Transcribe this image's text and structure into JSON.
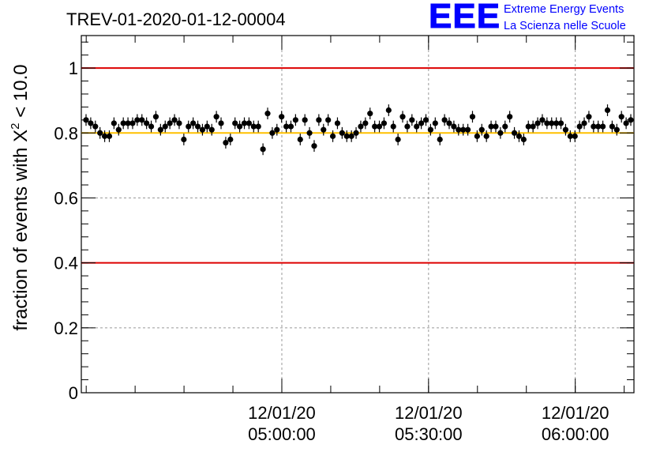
{
  "title": "TREV-01-2020-01-12-00004",
  "logo": {
    "letters": "EEE",
    "line1": "Extreme Energy Events",
    "line2": "La Scienza nelle Scuole",
    "color": "#0000ff"
  },
  "chart_data": {
    "type": "scatter",
    "title": "TREV-01-2020-01-12-00004",
    "ylabel_prefix": "fraction of events with ",
    "ylabel_symbol": "X",
    "ylabel_sup": "2",
    "ylabel_suffix": " < 10.0",
    "xlabel": "",
    "ylim": [
      0,
      1.1
    ],
    "yticks": [
      "0",
      "0.2",
      "0.4",
      "0.6",
      "0.8",
      "1"
    ],
    "ytick_values": [
      0,
      0.2,
      0.4,
      0.6,
      0.8,
      1.0
    ],
    "xlim_minutes": [
      -41,
      72
    ],
    "xticks": [
      {
        "minute": 0,
        "line1": "12/01/20",
        "line2": "05:00:00"
      },
      {
        "minute": 30,
        "line1": "12/01/20",
        "line2": "05:30:00"
      },
      {
        "minute": 60,
        "line1": "12/01/20",
        "line2": "06:00:00"
      }
    ],
    "grid": true,
    "reference_lines": [
      {
        "y": 1.0,
        "color": "#dd0000"
      },
      {
        "y": 0.4,
        "color": "#dd0000"
      },
      {
        "y": 0.8,
        "color": "#ffc000"
      }
    ],
    "series": [
      {
        "marker_color": "#000000",
        "y": [
          0.84,
          0.83,
          0.82,
          0.8,
          0.79,
          0.79,
          0.83,
          0.81,
          0.83,
          0.83,
          0.83,
          0.84,
          0.84,
          0.83,
          0.82,
          0.85,
          0.81,
          0.82,
          0.83,
          0.84,
          0.83,
          0.78,
          0.82,
          0.83,
          0.82,
          0.81,
          0.82,
          0.81,
          0.85,
          0.83,
          0.77,
          0.78,
          0.83,
          0.82,
          0.83,
          0.83,
          0.82,
          0.82,
          0.75,
          0.86,
          0.8,
          0.81,
          0.85,
          0.82,
          0.82,
          0.84,
          0.78,
          0.84,
          0.8,
          0.76,
          0.84,
          0.81,
          0.84,
          0.79,
          0.83,
          0.8,
          0.79,
          0.79,
          0.8,
          0.82,
          0.83,
          0.86,
          0.82,
          0.82,
          0.83,
          0.87,
          0.82,
          0.78,
          0.85,
          0.82,
          0.84,
          0.82,
          0.83,
          0.84,
          0.81,
          0.83,
          0.78,
          0.84,
          0.83,
          0.82,
          0.81,
          0.81,
          0.81,
          0.85,
          0.79,
          0.81,
          0.79,
          0.82,
          0.82,
          0.8,
          0.82,
          0.85,
          0.8,
          0.79,
          0.78,
          0.82,
          0.82,
          0.83,
          0.84,
          0.83,
          0.83,
          0.83,
          0.83,
          0.81,
          0.79,
          0.79,
          0.82,
          0.83,
          0.85,
          0.82,
          0.82,
          0.82,
          0.87,
          0.82,
          0.81,
          0.85,
          0.83,
          0.84
        ],
        "error": 0.018
      }
    ]
  }
}
